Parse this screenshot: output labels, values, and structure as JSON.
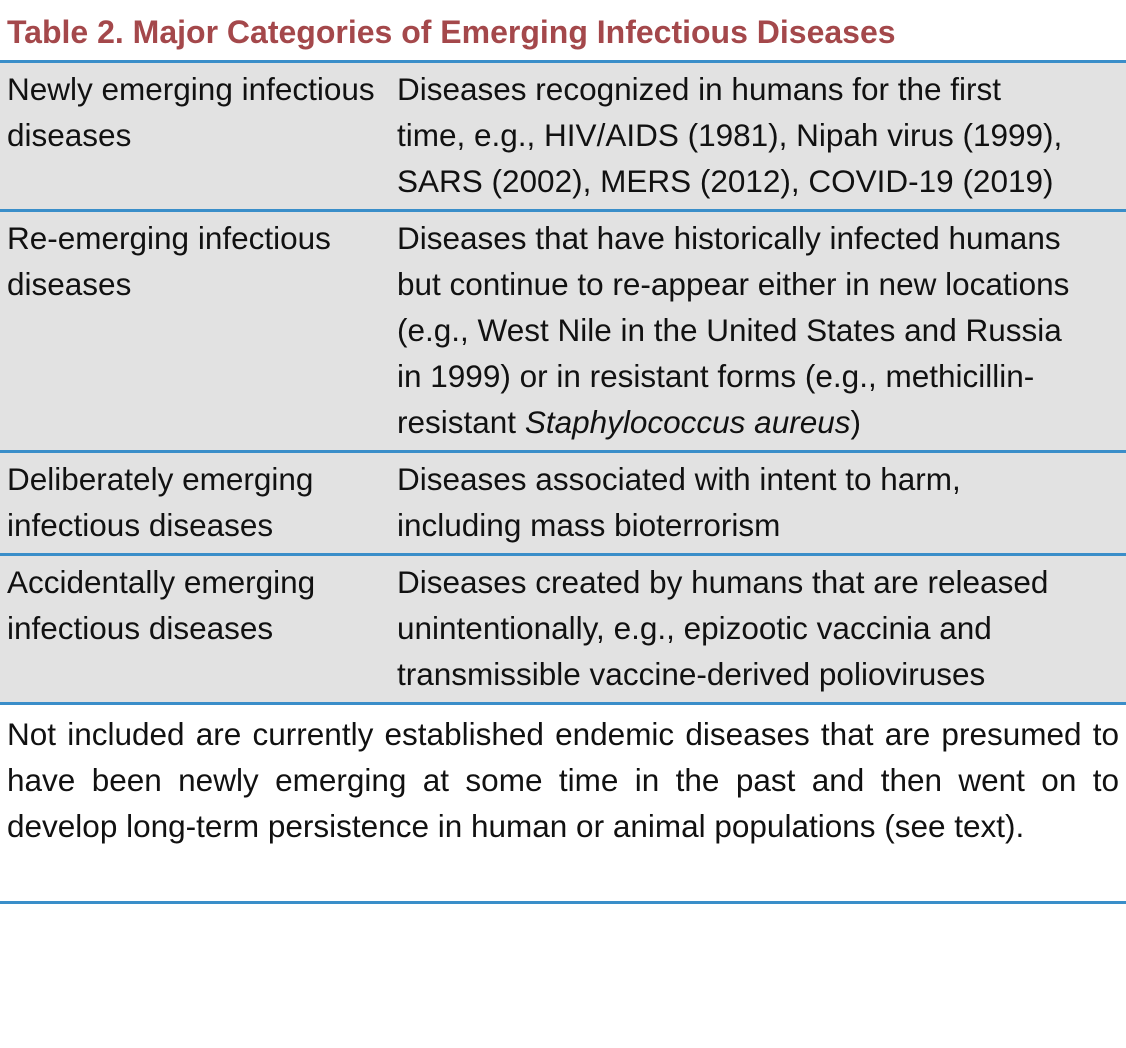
{
  "header": {
    "title": "Table 2.  Major Categories of Emerging Infectious Diseases"
  },
  "table": {
    "rows": [
      {
        "category": "Newly emerging infectious diseases",
        "description": [
          {
            "text": "Diseases recognized in humans for the first time, e.g., HIV/AIDS (1981), Nipah virus (1999), SARS (2002), MERS (2012), COVID-19 (2019)"
          }
        ]
      },
      {
        "category": "Re-emerging infectious diseases",
        "description": [
          {
            "text": "Diseases that have historically infected humans but continue to re-appear either in new locations (e.g., West Nile in the United States and Russia in 1999) or in resistant forms (e.g., methicillin-resistant "
          },
          {
            "text": "Staphylococcus aureus",
            "italic": true
          },
          {
            "text": ")"
          }
        ]
      },
      {
        "category": "Deliberately emerging infectious diseases",
        "description": [
          {
            "text": "Diseases associated with intent to harm, including mass bioterrorism"
          }
        ]
      },
      {
        "category": "Accidentally emerging infectious diseases",
        "description": [
          {
            "text": "Diseases created by humans that are released unintentionally, e.g., epizootic vaccinia and transmissible vaccine-derived polioviruses"
          }
        ]
      }
    ]
  },
  "footnote": "Not included are currently established endemic diseases that are presumed to have been newly emerging at some time in the past and then went on to develop long-term persistence in human or animal populations (see text)."
}
